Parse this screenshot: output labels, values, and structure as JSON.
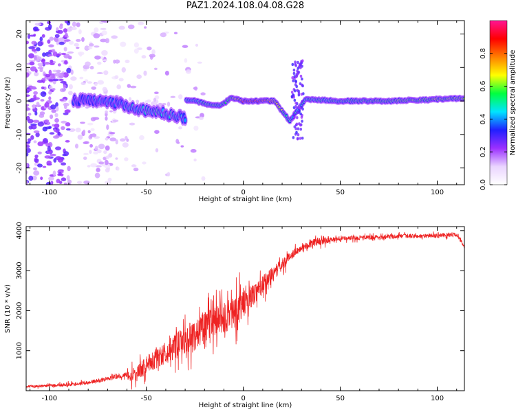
{
  "title": "PAZ1.2024.108.04.08.G28",
  "chart_data": [
    {
      "type": "heatmap",
      "xlabel": "Height of straight line (km)",
      "ylabel": "Frequency (Hz)",
      "xlim": [
        -112,
        114
      ],
      "ylim": [
        -25,
        24
      ],
      "xticks": [
        -100,
        -50,
        0,
        50,
        100
      ],
      "yticks": [
        -20,
        -10,
        0,
        10,
        20
      ],
      "colorbar": {
        "label": "Normalized spectral amplitude",
        "range": [
          0.0,
          1.0
        ],
        "ticks": [
          0.0,
          0.2,
          0.4,
          0.6,
          0.8
        ],
        "colors": [
          "#ffffff",
          "#ead4ff",
          "#9b30ff",
          "#2020ff",
          "#00e5ff",
          "#00ff40",
          "#ffff00",
          "#ff8000",
          "#ff0000",
          "#ff1493"
        ]
      },
      "ridge": [
        {
          "x": -88,
          "y": 0.0,
          "amp": 0.3
        },
        {
          "x": -80,
          "y": 0.5,
          "amp": 0.35
        },
        {
          "x": -70,
          "y": -0.5,
          "amp": 0.4
        },
        {
          "x": -62,
          "y": -1.0,
          "amp": 0.4
        },
        {
          "x": -55,
          "y": -2.5,
          "amp": 0.45
        },
        {
          "x": -48,
          "y": -3.0,
          "amp": 0.5
        },
        {
          "x": -42,
          "y": -3.5,
          "amp": 0.5
        },
        {
          "x": -35,
          "y": -4.5,
          "amp": 0.45
        },
        {
          "x": -30,
          "y": -5.0,
          "amp": 0.4
        },
        {
          "x": -32,
          "y": 0.5,
          "amp": 0.4
        },
        {
          "x": -25,
          "y": 0.0,
          "amp": 0.5
        },
        {
          "x": -18,
          "y": -1.0,
          "amp": 0.5
        },
        {
          "x": -12,
          "y": -1.5,
          "amp": 0.5
        },
        {
          "x": -6,
          "y": 1.0,
          "amp": 0.6
        },
        {
          "x": 0,
          "y": 0.0,
          "amp": 0.85
        },
        {
          "x": 8,
          "y": 0.0,
          "amp": 0.85
        },
        {
          "x": 16,
          "y": 0.0,
          "amp": 0.7
        },
        {
          "x": 20,
          "y": -3.0,
          "amp": 0.6
        },
        {
          "x": 24,
          "y": -6.0,
          "amp": 0.45
        },
        {
          "x": 32,
          "y": 0.5,
          "amp": 0.5
        },
        {
          "x": 50,
          "y": 0.0,
          "amp": 0.5
        },
        {
          "x": 75,
          "y": 0.0,
          "amp": 0.55
        },
        {
          "x": 100,
          "y": 0.5,
          "amp": 0.6
        },
        {
          "x": 114,
          "y": 0.8,
          "amp": 0.6
        }
      ]
    },
    {
      "type": "line",
      "xlabel": "Height of straight line (km)",
      "ylabel": "SNR (10 * v/v)",
      "xlim": [
        -112,
        114
      ],
      "ylim": [
        0,
        4100
      ],
      "xticks": [
        -100,
        -50,
        0,
        50,
        100
      ],
      "yticks": [
        1000,
        2000,
        3000,
        4000
      ],
      "color": "#ee2222",
      "x": [
        -112,
        -100,
        -90,
        -80,
        -70,
        -60,
        -55,
        -50,
        -45,
        -40,
        -35,
        -30,
        -25,
        -20,
        -15,
        -10,
        -5,
        0,
        5,
        10,
        15,
        20,
        25,
        30,
        35,
        40,
        45,
        50,
        60,
        70,
        80,
        90,
        100,
        110,
        114
      ],
      "y": [
        100,
        130,
        150,
        200,
        300,
        400,
        420,
        650,
        800,
        950,
        1100,
        1250,
        1400,
        1600,
        1700,
        1800,
        1950,
        2150,
        2400,
        2650,
        2900,
        3150,
        3400,
        3580,
        3680,
        3750,
        3780,
        3800,
        3820,
        3840,
        3860,
        3860,
        3880,
        3900,
        3600
      ]
    }
  ]
}
